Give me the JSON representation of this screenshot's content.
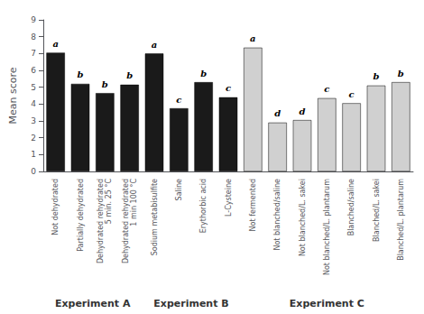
{
  "chart_data": {
    "type": "bar",
    "ylabel": "Mean score",
    "categories": [
      "Not dehydrated",
      "Partially dehydrated",
      "Dehydrated rehydrated\n5 min. 25 °C",
      "Dehydrated rehydrated\n1 min 100 °C",
      "Sodium metabisulfite",
      "Saline",
      "Erythorbic acid",
      "L-Cysteine",
      "Not fermented",
      "Not blanched/saline",
      "Not blanched/L. sakei",
      "Not blanched/L. plantarum",
      "Blanched/saline",
      "Blanched/L. sakei",
      "Blanched/L. plantarum"
    ],
    "values": [
      7.05,
      5.2,
      4.65,
      5.15,
      7.0,
      3.75,
      5.3,
      4.4,
      7.35,
      2.9,
      3.05,
      4.35,
      4.05,
      5.1,
      5.3
    ],
    "colors": [
      "#1a1a1a",
      "#1a1a1a",
      "#1a1a1a",
      "#1a1a1a",
      "#1a1a1a",
      "#1a1a1a",
      "#1a1a1a",
      "#1a1a1a",
      "#d0d0d0",
      "#d0d0d0",
      "#d0d0d0",
      "#d0d0d0",
      "#d0d0d0",
      "#d0d0d0",
      "#d0d0d0"
    ],
    "annotations": [
      {
        "text": "a",
        "category": "Not dehydrated"
      },
      {
        "text": "b",
        "category": "Partially dehydrated"
      },
      {
        "text": "b",
        "category": "Dehydrated rehydrated\n5 min. 25 °C"
      },
      {
        "text": "b",
        "category": "Dehydrated rehydrated\n1 min 100 °C"
      },
      {
        "text": "a",
        "category": "Sodium metabisulfite"
      },
      {
        "text": "c",
        "category": "Saline"
      },
      {
        "text": "b",
        "category": "Erythorbic acid"
      },
      {
        "text": "c",
        "category": "L-Cysteine"
      },
      {
        "text": "a",
        "category": "Not fermented"
      },
      {
        "text": "d",
        "category": "Not blanched/saline"
      },
      {
        "text": "d",
        "category": "Not blanched/L. sakei"
      },
      {
        "text": "c",
        "category": "Not blanched/L. plantarum"
      },
      {
        "text": "c",
        "category": "Blanched/saline"
      },
      {
        "text": "b",
        "category": "Blanched/L. sakei"
      },
      {
        "text": "b",
        "category": "Blanched/L. plantarum"
      },
      {
        "text": "Experiment A",
        "from": "Not dehydrated",
        "to": "Dehydrated rehydrated\n1 min 100 °C"
      },
      {
        "text": "Experiment B",
        "from": "Sodium metabisulfite",
        "to": "L-Cysteine"
      },
      {
        "text": "Experiment C",
        "from": "Not fermented",
        "to": "Blanched/L. plantarum"
      }
    ],
    "ylim": [
      0,
      9
    ],
    "yticks": [
      0,
      1,
      2,
      3,
      4,
      5,
      6,
      7,
      8,
      9
    ],
    "grid": false
  }
}
